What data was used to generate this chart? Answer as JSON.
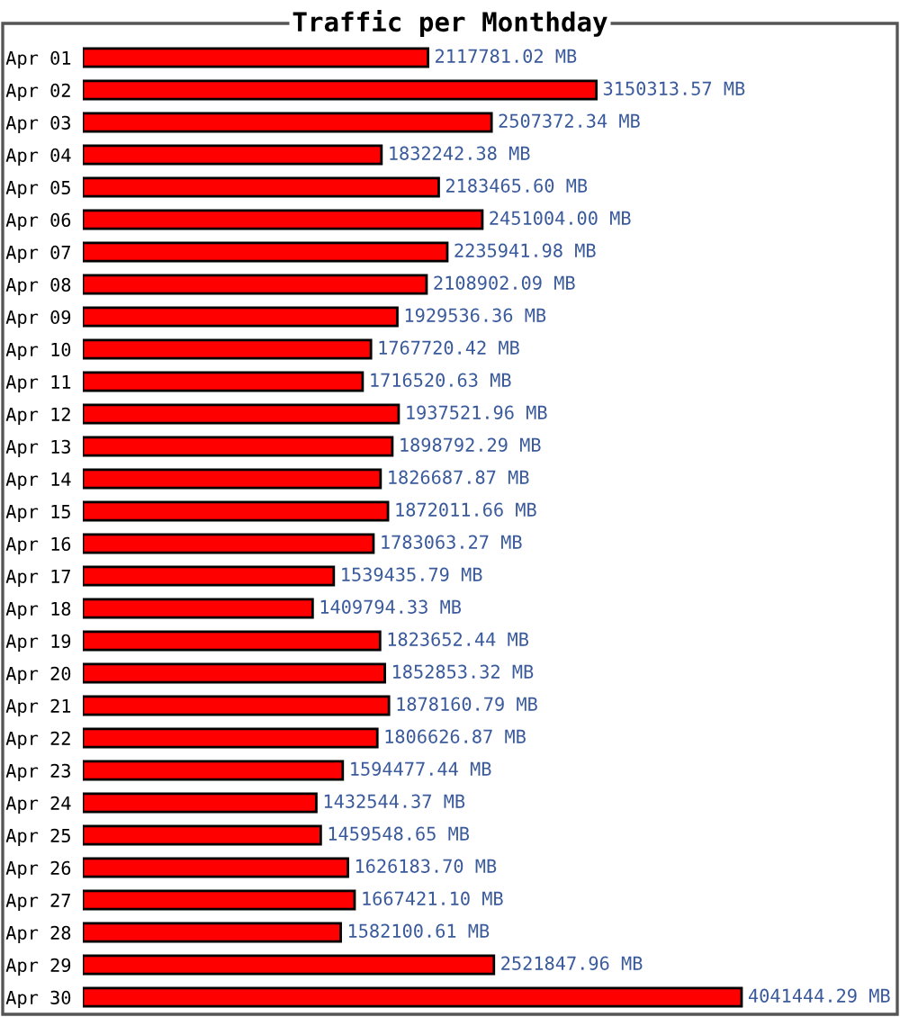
{
  "chart_data": {
    "type": "bar",
    "orientation": "horizontal",
    "title": "Traffic per Monthday",
    "categories": [
      "Apr 01",
      "Apr 02",
      "Apr 03",
      "Apr 04",
      "Apr 05",
      "Apr 06",
      "Apr 07",
      "Apr 08",
      "Apr 09",
      "Apr 10",
      "Apr 11",
      "Apr 12",
      "Apr 13",
      "Apr 14",
      "Apr 15",
      "Apr 16",
      "Apr 17",
      "Apr 18",
      "Apr 19",
      "Apr 20",
      "Apr 21",
      "Apr 22",
      "Apr 23",
      "Apr 24",
      "Apr 25",
      "Apr 26",
      "Apr 27",
      "Apr 28",
      "Apr 29",
      "Apr 30"
    ],
    "values": [
      2117781.02,
      3150313.57,
      2507372.34,
      1832242.38,
      2183465.6,
      2451004.0,
      2235941.98,
      2108902.09,
      1929536.36,
      1767720.42,
      1716520.63,
      1937521.96,
      1898792.29,
      1826687.87,
      1872011.66,
      1783063.27,
      1539435.79,
      1409794.33,
      1823652.44,
      1852853.32,
      1878160.79,
      1806626.87,
      1594477.44,
      1432544.37,
      1459548.65,
      1626183.7,
      1667421.1,
      1582100.61,
      2521847.96,
      4041444.29
    ],
    "value_labels": [
      "2117781.02 MB",
      "3150313.57 MB",
      "2507372.34 MB",
      "1832242.38 MB",
      "2183465.60 MB",
      "2451004.00 MB",
      "2235941.98 MB",
      "2108902.09 MB",
      "1929536.36 MB",
      "1767720.42 MB",
      "1716520.63 MB",
      "1937521.96 MB",
      "1898792.29 MB",
      "1826687.87 MB",
      "1872011.66 MB",
      "1783063.27 MB",
      "1539435.79 MB",
      "1409794.33 MB",
      "1823652.44 MB",
      "1852853.32 MB",
      "1878160.79 MB",
      "1806626.87 MB",
      "1594477.44 MB",
      "1432544.37 MB",
      "1459548.65 MB",
      "1626183.70 MB",
      "1667421.10 MB",
      "1582100.61 MB",
      "2521847.96 MB",
      "4041444.29 MB"
    ],
    "color": "#ff0000",
    "tick_labels": "y"
  }
}
